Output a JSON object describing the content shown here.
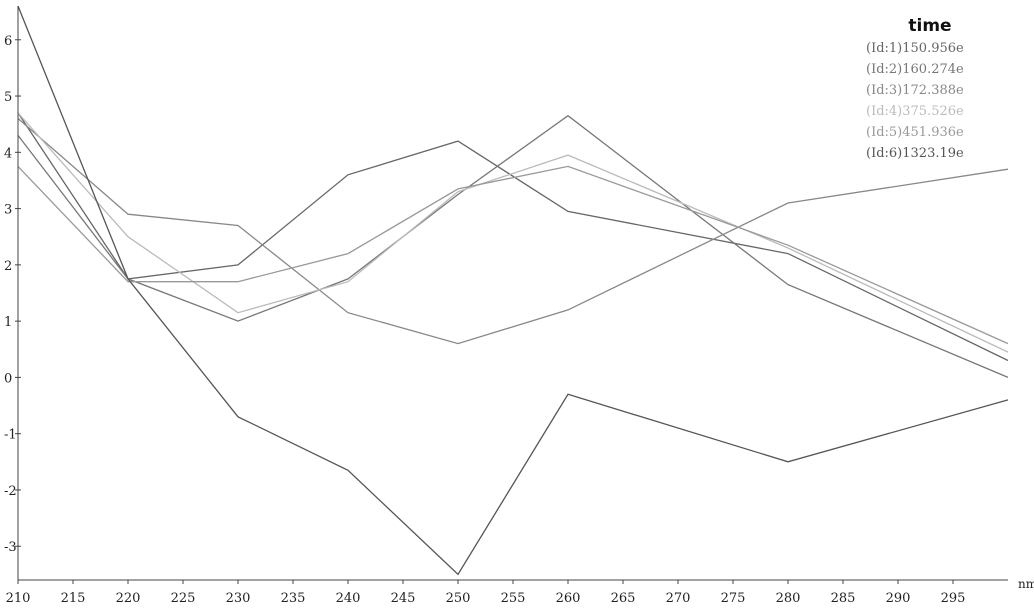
{
  "chart_data": {
    "type": "line",
    "xlabel": "nm",
    "ylabel": "",
    "xlim": [
      210,
      300
    ],
    "ylim": [
      -3.6,
      6.6
    ],
    "x_ticks": [
      210,
      215,
      220,
      225,
      230,
      235,
      240,
      245,
      250,
      255,
      260,
      265,
      270,
      275,
      280,
      285,
      290,
      295
    ],
    "y_ticks": [
      6,
      5,
      4,
      3,
      2,
      1,
      0,
      -1,
      -2,
      -3
    ],
    "x": [
      210,
      220,
      230,
      240,
      250,
      260,
      280,
      300
    ],
    "grid": false,
    "legend_placement": "top-right",
    "legend_title": "time",
    "series": [
      {
        "name": "(Id:1)150.956e",
        "color": "#666666",
        "values": [
          4.7,
          1.75,
          2.0,
          3.6,
          4.2,
          2.95,
          2.2,
          0.3
        ]
      },
      {
        "name": "(Id:2)160.274e",
        "color": "#777777",
        "values": [
          4.3,
          1.75,
          1.0,
          1.75,
          3.25,
          4.65,
          1.65,
          0.0
        ]
      },
      {
        "name": "(Id:3)172.388e",
        "color": "#888888",
        "values": [
          4.6,
          2.9,
          2.7,
          1.15,
          0.6,
          1.2,
          3.1,
          3.7
        ]
      },
      {
        "name": "(Id:4)375.526e",
        "color": "#bbbbbb",
        "values": [
          4.7,
          2.5,
          1.15,
          1.7,
          3.3,
          3.95,
          2.3,
          0.45
        ]
      },
      {
        "name": "(Id:5)451.936e",
        "color": "#999999",
        "values": [
          3.75,
          1.7,
          1.7,
          2.2,
          3.35,
          3.75,
          2.35,
          0.6
        ]
      },
      {
        "name": "(Id:6)1323.19e",
        "color": "#555555",
        "values": [
          6.6,
          1.75,
          -0.7,
          -1.65,
          -3.5,
          -0.3,
          -1.5,
          -0.4
        ]
      }
    ]
  }
}
